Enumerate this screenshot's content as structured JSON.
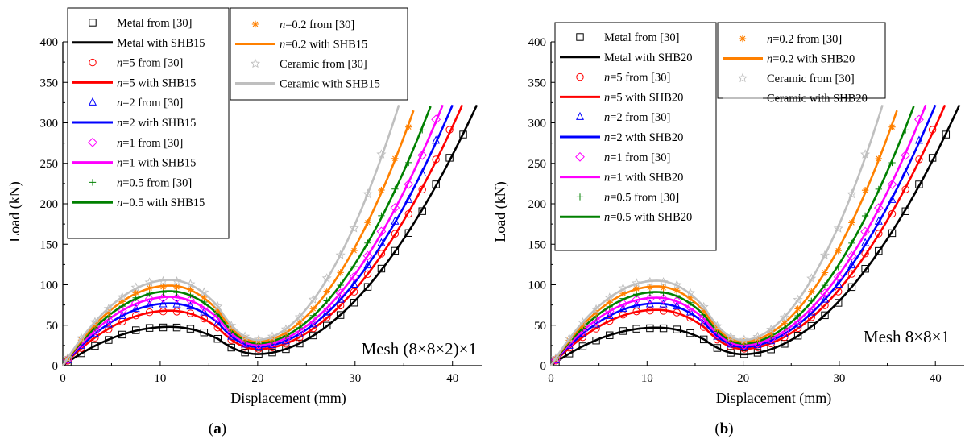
{
  "chart_data": [
    {
      "type": "line",
      "panel_label": "a",
      "xlabel": "Displacement (mm)",
      "ylabel": "Load (kN)",
      "xlim": [
        0,
        43
      ],
      "ylim": [
        0,
        400
      ],
      "xticks": [
        0,
        10,
        20,
        30,
        40
      ],
      "yticks": [
        0,
        50,
        100,
        150,
        200,
        250,
        300,
        350,
        400
      ],
      "annotation": "Mesh (8×8×2)×1",
      "legend_placement": "top-left",
      "materials": [
        {
          "key": "metal",
          "color": "#000000",
          "marker": "square",
          "peak": 48,
          "xend": 42.5
        },
        {
          "key": "n5",
          "color": "#ff0000",
          "marker": "circle",
          "peak": 68,
          "xend": 41.0
        },
        {
          "key": "n2",
          "color": "#0000ff",
          "marker": "triangle",
          "peak": 77,
          "xend": 40.0
        },
        {
          "key": "n1",
          "color": "#ff00ff",
          "marker": "diamond",
          "peak": 85,
          "xend": 39.0
        },
        {
          "key": "n05",
          "color": "#008000",
          "marker": "plus",
          "peak": 92,
          "xend": 37.8
        },
        {
          "key": "n02",
          "color": "#ff8000",
          "marker": "asterisk",
          "peak": 99,
          "xend": 36.2
        },
        {
          "key": "ceramic",
          "color": "#bfbfbf",
          "marker": "star",
          "peak": 106,
          "xend": 34.5
        }
      ],
      "legend_left": [
        {
          "label": "Metal from [30]",
          "color": "#000000",
          "kind": "marker",
          "marker": "square"
        },
        {
          "label": "Metal with SHB15",
          "color": "#000000",
          "kind": "line"
        },
        {
          "label": "n=5  from [30]",
          "color": "#ff0000",
          "kind": "marker",
          "marker": "circle"
        },
        {
          "label": "n=5 with SHB15",
          "color": "#ff0000",
          "kind": "line"
        },
        {
          "label": "n=2  from [30]",
          "color": "#0000ff",
          "kind": "marker",
          "marker": "triangle"
        },
        {
          "label": "n=2 with SHB15",
          "color": "#0000ff",
          "kind": "line"
        },
        {
          "label": "n=1  from [30]",
          "color": "#ff00ff",
          "kind": "marker",
          "marker": "diamond"
        },
        {
          "label": "n=1 with SHB15",
          "color": "#ff00ff",
          "kind": "line"
        },
        {
          "label": "n=0.5  from [30]",
          "color": "#008000",
          "kind": "marker",
          "marker": "plus"
        },
        {
          "label": "n=0.5 with SHB15",
          "color": "#008000",
          "kind": "line"
        }
      ],
      "legend_right": [
        {
          "label": "n=0.2  from [30]",
          "color": "#ff8000",
          "kind": "marker",
          "marker": "asterisk"
        },
        {
          "label": "n=0.2 with SHB15",
          "color": "#ff8000",
          "kind": "line"
        },
        {
          "label": "Ceramic  from [30]",
          "color": "#bfbfbf",
          "kind": "marker",
          "marker": "star"
        },
        {
          "label": "Ceramic with SHB15",
          "color": "#bfbfbf",
          "kind": "line"
        }
      ]
    },
    {
      "type": "line",
      "panel_label": "b",
      "xlabel": "Displacement (mm)",
      "ylabel": "Load (kN)",
      "xlim": [
        0,
        43
      ],
      "ylim": [
        0,
        400
      ],
      "xticks": [
        0,
        10,
        20,
        30,
        40
      ],
      "yticks": [
        0,
        50,
        100,
        150,
        200,
        250,
        300,
        350,
        400
      ],
      "annotation": "Mesh 8×8×1",
      "legend_placement": "top-left",
      "materials": [
        {
          "key": "metal",
          "color": "#000000",
          "marker": "square",
          "peak": 47,
          "xend": 42.5
        },
        {
          "key": "n5",
          "color": "#ff0000",
          "marker": "circle",
          "peak": 69,
          "xend": 41.0
        },
        {
          "key": "n2",
          "color": "#0000ff",
          "marker": "triangle",
          "peak": 77,
          "xend": 40.0
        },
        {
          "key": "n1",
          "color": "#ff00ff",
          "marker": "diamond",
          "peak": 84,
          "xend": 39.0
        },
        {
          "key": "n05",
          "color": "#008000",
          "marker": "plus",
          "peak": 91,
          "xend": 37.8
        },
        {
          "key": "n02",
          "color": "#ff8000",
          "marker": "asterisk",
          "peak": 98,
          "xend": 36.2
        },
        {
          "key": "ceramic",
          "color": "#bfbfbf",
          "marker": "star",
          "peak": 105,
          "xend": 34.5
        }
      ],
      "legend_left": [
        {
          "label": "Metal from [30]",
          "color": "#000000",
          "kind": "marker",
          "marker": "square"
        },
        {
          "label": "Metal with SHB20",
          "color": "#000000",
          "kind": "line"
        },
        {
          "label": "n=5  from [30]",
          "color": "#ff0000",
          "kind": "marker",
          "marker": "circle"
        },
        {
          "label": "n=5 with SHB20",
          "color": "#ff0000",
          "kind": "line"
        },
        {
          "label": "n=2  from [30]",
          "color": "#0000ff",
          "kind": "marker",
          "marker": "triangle"
        },
        {
          "label": "n=2 with SHB20",
          "color": "#0000ff",
          "kind": "line"
        },
        {
          "label": "n=1  from [30]",
          "color": "#ff00ff",
          "kind": "marker",
          "marker": "diamond"
        },
        {
          "label": "n=1 with SHB20",
          "color": "#ff00ff",
          "kind": "line"
        },
        {
          "label": "n=0.5  from [30]",
          "color": "#008000",
          "kind": "marker",
          "marker": "plus"
        },
        {
          "label": "n=0.5 with SHB20",
          "color": "#008000",
          "kind": "line"
        }
      ],
      "legend_right": [
        {
          "label": "n=0.2  from [30]",
          "color": "#ff8000",
          "kind": "marker",
          "marker": "asterisk"
        },
        {
          "label": "n=0.2 with SHB20",
          "color": "#ff8000",
          "kind": "line"
        },
        {
          "label": "Ceramic  from [30]",
          "color": "#bfbfbf",
          "kind": "marker",
          "marker": "star"
        },
        {
          "label": "Ceramic with SHB20",
          "color": "#bfbfbf",
          "kind": "line"
        }
      ]
    }
  ]
}
